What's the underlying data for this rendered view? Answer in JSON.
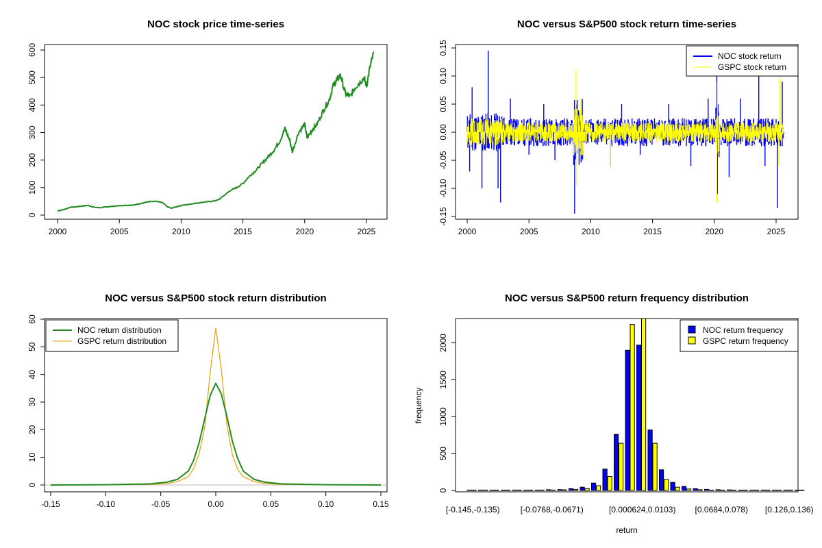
{
  "chart_data": [
    {
      "type": "line",
      "title": "NOC stock price time-series",
      "xlabel": "",
      "ylabel": "",
      "xlim": [
        2000,
        2025.6
      ],
      "ylim": [
        0,
        600
      ],
      "x_ticks": [
        2000,
        2005,
        2010,
        2015,
        2020,
        2025
      ],
      "y_ticks": [
        0,
        100,
        200,
        300,
        400,
        500,
        600
      ],
      "series": [
        {
          "color": "#228B22",
          "x": [
            2000.0,
            2000.5,
            2001.0,
            2001.5,
            2002.0,
            2002.5,
            2003.0,
            2003.5,
            2004.0,
            2004.5,
            2005.0,
            2005.5,
            2006.0,
            2006.5,
            2007.0,
            2007.5,
            2008.0,
            2008.5,
            2008.9,
            2009.2,
            2009.6,
            2010.0,
            2010.5,
            2011.0,
            2011.5,
            2012.0,
            2012.5,
            2013.0,
            2013.5,
            2014.0,
            2014.5,
            2015.0,
            2015.5,
            2016.0,
            2016.5,
            2017.0,
            2017.5,
            2018.0,
            2018.4,
            2018.8,
            2019.0,
            2019.5,
            2020.0,
            2020.2,
            2020.6,
            2021.0,
            2021.5,
            2022.0,
            2022.3,
            2022.6,
            2022.9,
            2023.3,
            2023.7,
            2024.0,
            2024.4,
            2024.8,
            2025.0,
            2025.3,
            2025.6
          ],
          "y": [
            15,
            20,
            28,
            30,
            33,
            35,
            28,
            27,
            30,
            32,
            34,
            35,
            36,
            40,
            45,
            50,
            50,
            45,
            30,
            25,
            30,
            35,
            38,
            42,
            45,
            48,
            50,
            55,
            72,
            90,
            100,
            115,
            140,
            160,
            185,
            210,
            235,
            270,
            315,
            270,
            230,
            300,
            330,
            280,
            310,
            330,
            380,
            420,
            470,
            490,
            510,
            440,
            430,
            460,
            480,
            500,
            470,
            540,
            590
          ]
        }
      ]
    },
    {
      "type": "line",
      "title": "NOC versus S&P500 stock return time-series",
      "xlabel": "",
      "ylabel": "",
      "xlim": [
        2000,
        2025.6
      ],
      "ylim": [
        -0.15,
        0.15
      ],
      "x_ticks": [
        2000,
        2005,
        2010,
        2015,
        2020,
        2025
      ],
      "y_ticks": [
        -0.15,
        -0.1,
        -0.05,
        0.0,
        0.05,
        0.1,
        0.15
      ],
      "legend_position": "top-right",
      "series": [
        {
          "name": "NOC stock return",
          "color": "#0000FF",
          "spikes": [
            [
              2000.2,
              -0.07
            ],
            [
              2000.4,
              0.08
            ],
            [
              2001.2,
              -0.1
            ],
            [
              2001.7,
              0.145
            ],
            [
              2002.5,
              -0.1
            ],
            [
              2002.7,
              -0.125
            ],
            [
              2003.5,
              0.06
            ],
            [
              2005.0,
              -0.04
            ],
            [
              2006.2,
              0.05
            ],
            [
              2007.1,
              -0.05
            ],
            [
              2008.7,
              -0.145
            ],
            [
              2008.9,
              0.05
            ],
            [
              2011.6,
              -0.06
            ],
            [
              2012.5,
              0.05
            ],
            [
              2014.0,
              -0.04
            ],
            [
              2016.3,
              0.05
            ],
            [
              2018.1,
              -0.06
            ],
            [
              2019.5,
              0.06
            ],
            [
              2020.2,
              0.13
            ],
            [
              2020.25,
              -0.11
            ],
            [
              2021.2,
              -0.08
            ],
            [
              2022.1,
              0.06
            ],
            [
              2023.6,
              0.1
            ],
            [
              2024.1,
              -0.06
            ],
            [
              2025.1,
              -0.135
            ],
            [
              2025.5,
              0.09
            ]
          ]
        },
        {
          "name": "GSPC stock return",
          "color": "#FFFF00",
          "spikes": [
            [
              2008.8,
              0.11
            ],
            [
              2008.85,
              -0.095
            ],
            [
              2009.2,
              0.06
            ],
            [
              2011.6,
              -0.065
            ],
            [
              2020.2,
              -0.125
            ],
            [
              2020.25,
              0.09
            ],
            [
              2025.2,
              -0.06
            ],
            [
              2025.3,
              0.095
            ]
          ]
        }
      ]
    },
    {
      "type": "line",
      "title": "NOC versus S&P500 stock return distribution",
      "xlabel": "",
      "ylabel": "",
      "xlim": [
        -0.15,
        0.15
      ],
      "ylim": [
        0,
        60
      ],
      "x_ticks": [
        -0.15,
        -0.1,
        -0.05,
        0.0,
        0.05,
        0.1,
        0.15
      ],
      "y_ticks": [
        0,
        10,
        20,
        30,
        40,
        50,
        60
      ],
      "legend_position": "top-left",
      "series": [
        {
          "name": "NOC return distribution",
          "color": "#228B22",
          "x": [
            -0.15,
            -0.1,
            -0.06,
            -0.045,
            -0.035,
            -0.025,
            -0.02,
            -0.015,
            -0.01,
            -0.005,
            0.0,
            0.005,
            0.01,
            0.015,
            0.02,
            0.025,
            0.035,
            0.045,
            0.06,
            0.1,
            0.15
          ],
          "y": [
            0,
            0.1,
            0.4,
            1.0,
            2.0,
            5.0,
            9.0,
            15.5,
            24.0,
            32.5,
            36.8,
            33.0,
            25.0,
            16.0,
            9.5,
            5.0,
            2.0,
            1.0,
            0.4,
            0.1,
            0
          ]
        },
        {
          "name": "GSPC return distribution",
          "color": "#E69F00",
          "x": [
            -0.15,
            -0.1,
            -0.06,
            -0.045,
            -0.035,
            -0.025,
            -0.02,
            -0.015,
            -0.01,
            -0.005,
            0.0,
            0.005,
            0.01,
            0.015,
            0.02,
            0.025,
            0.035,
            0.045,
            0.06,
            0.1,
            0.15
          ],
          "y": [
            0,
            0.05,
            0.2,
            0.5,
            1.2,
            3.0,
            6.0,
            11.5,
            21.0,
            41.0,
            56.8,
            42.0,
            22.0,
            11.0,
            5.5,
            3.0,
            1.2,
            0.5,
            0.2,
            0.05,
            0
          ]
        }
      ]
    },
    {
      "type": "bar",
      "title": "NOC versus S&P500 return frequency distribution",
      "xlabel": "return",
      "ylabel": "frequency",
      "ylim": [
        0,
        2300
      ],
      "y_ticks": [
        0,
        500,
        1000,
        1500,
        2000
      ],
      "x_tick_labels": [
        "[-0.145,-0.135)",
        "[-0.0768,-0.0671)",
        "[0.000624,0.0103)",
        "[0.0684,0.078)",
        "[0.126,0.136)"
      ],
      "x_tick_category_index": [
        0,
        7,
        15,
        22,
        28
      ],
      "legend_position": "top-right",
      "categories_count": 30,
      "series": [
        {
          "name": "NOC return frequency",
          "color": "#0000FF",
          "values": [
            2,
            1,
            1,
            2,
            3,
            5,
            6,
            10,
            12,
            25,
            45,
            100,
            290,
            760,
            1900,
            1970,
            820,
            280,
            110,
            55,
            25,
            15,
            10,
            8,
            5,
            4,
            3,
            2,
            1,
            1
          ]
        },
        {
          "name": "GSPC return frequency",
          "color": "#FFFF00",
          "values": [
            1,
            1,
            1,
            1,
            2,
            3,
            3,
            6,
            8,
            15,
            25,
            65,
            190,
            640,
            2250,
            2330,
            640,
            150,
            45,
            20,
            10,
            6,
            4,
            3,
            2,
            2,
            1,
            1,
            1,
            1
          ]
        }
      ]
    }
  ]
}
